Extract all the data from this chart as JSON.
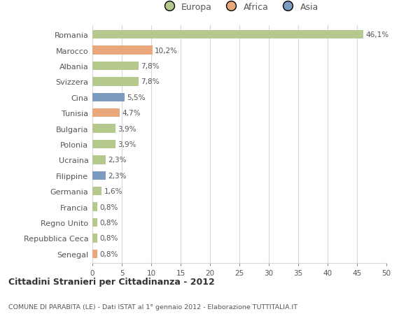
{
  "categories": [
    "Romania",
    "Marocco",
    "Albania",
    "Svizzera",
    "Cina",
    "Tunisia",
    "Bulgaria",
    "Polonia",
    "Ucraina",
    "Filippine",
    "Germania",
    "Francia",
    "Regno Unito",
    "Repubblica Ceca",
    "Senegal"
  ],
  "values": [
    46.1,
    10.2,
    7.8,
    7.8,
    5.5,
    4.7,
    3.9,
    3.9,
    2.3,
    2.3,
    1.6,
    0.8,
    0.8,
    0.8,
    0.8
  ],
  "labels": [
    "46,1%",
    "10,2%",
    "7,8%",
    "7,8%",
    "5,5%",
    "4,7%",
    "3,9%",
    "3,9%",
    "2,3%",
    "2,3%",
    "1,6%",
    "0,8%",
    "0,8%",
    "0,8%",
    "0,8%"
  ],
  "colors": [
    "#b5c98e",
    "#e8a87c",
    "#b5c98e",
    "#b5c98e",
    "#7b9bbf",
    "#e8a87c",
    "#b5c98e",
    "#b5c98e",
    "#b5c98e",
    "#7b9bbf",
    "#b5c98e",
    "#b5c98e",
    "#b5c98e",
    "#b5c98e",
    "#e8a87c"
  ],
  "legend_labels": [
    "Europa",
    "Africa",
    "Asia"
  ],
  "legend_colors": [
    "#b5c98e",
    "#e8a87c",
    "#7b9bbf"
  ],
  "title": "Cittadini Stranieri per Cittadinanza - 2012",
  "subtitle": "COMUNE DI PARABITA (LE) - Dati ISTAT al 1° gennaio 2012 - Elaborazione TUTTITALIA.IT",
  "xlim": [
    0,
    50
  ],
  "xticks": [
    0,
    5,
    10,
    15,
    20,
    25,
    30,
    35,
    40,
    45,
    50
  ],
  "background_color": "#ffffff",
  "grid_color": "#d8d8d8",
  "bar_height": 0.55,
  "label_color": "#666666",
  "text_color": "#555555"
}
